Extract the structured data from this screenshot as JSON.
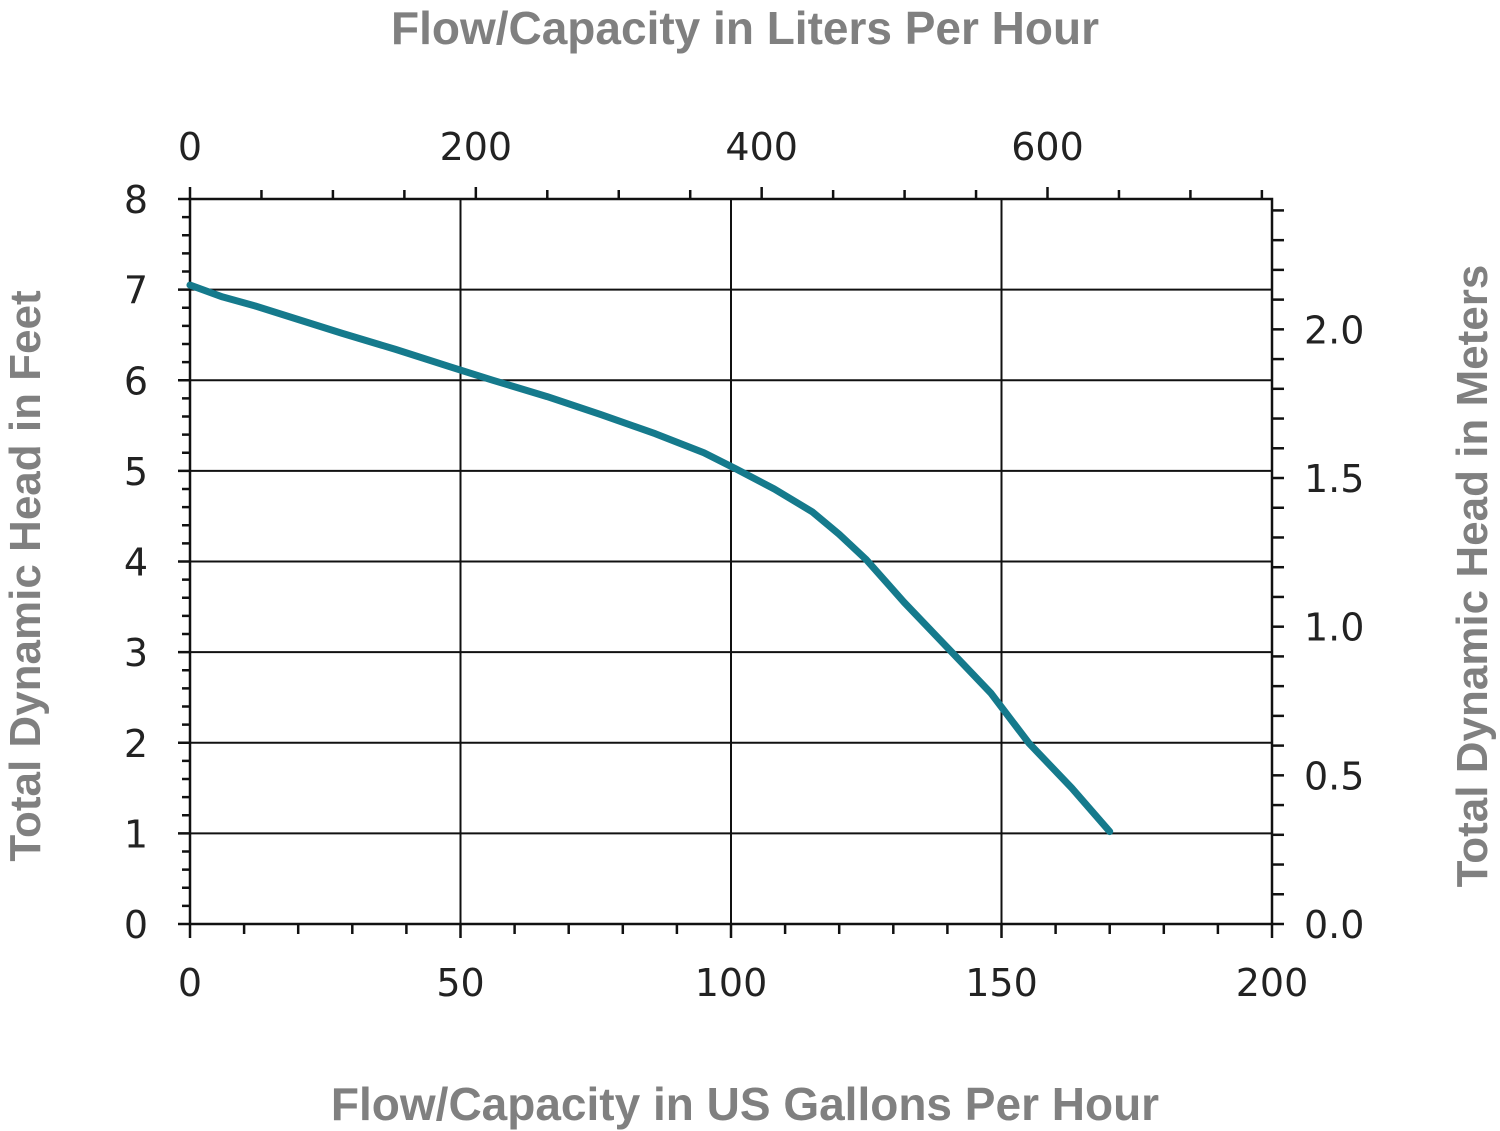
{
  "chart_data": {
    "type": "line",
    "title": "",
    "x_label_bottom": "Flow/Capacity in US Gallons Per Hour",
    "x_label_top": "Flow/Capacity in Liters Per Hour",
    "y_label_left": "Total Dynamic Head in Feet",
    "y_label_right": "Total Dynamic Head in Meters",
    "x_range": [
      0,
      200
    ],
    "y_range": [
      0,
      8
    ],
    "x_ticks": [
      "0",
      "50",
      "100",
      "150",
      "200"
    ],
    "x_ticks_values": [
      0,
      50,
      100,
      150,
      200
    ],
    "y_ticks": [
      "0",
      "1",
      "2",
      "3",
      "4",
      "5",
      "6",
      "7",
      "8"
    ],
    "y_ticks_values": [
      0,
      1,
      2,
      3,
      4,
      5,
      6,
      7,
      8
    ],
    "top_ticks": [
      "0",
      "200",
      "400",
      "600"
    ],
    "top_ticks_lph": [
      0,
      200,
      400,
      600
    ],
    "right_ticks": [
      "0.0",
      "0.5",
      "1.0",
      "1.5",
      "2.0"
    ],
    "right_ticks_m": [
      0,
      0.5,
      1.0,
      1.5,
      2.0
    ],
    "grid": true,
    "line_color": "#157a8c",
    "series": [
      {
        "x": [
          0,
          6,
          12,
          20,
          28,
          38,
          48,
          56,
          66,
          76,
          86,
          95,
          101,
          108,
          115,
          120,
          125,
          132,
          140,
          148,
          155,
          163,
          170
        ],
        "y": [
          7.05,
          6.92,
          6.82,
          6.67,
          6.52,
          6.34,
          6.15,
          6.0,
          5.82,
          5.62,
          5.41,
          5.2,
          5.02,
          4.8,
          4.55,
          4.3,
          4.02,
          3.55,
          3.05,
          2.55,
          2.0,
          1.5,
          1.02
        ]
      }
    ]
  }
}
